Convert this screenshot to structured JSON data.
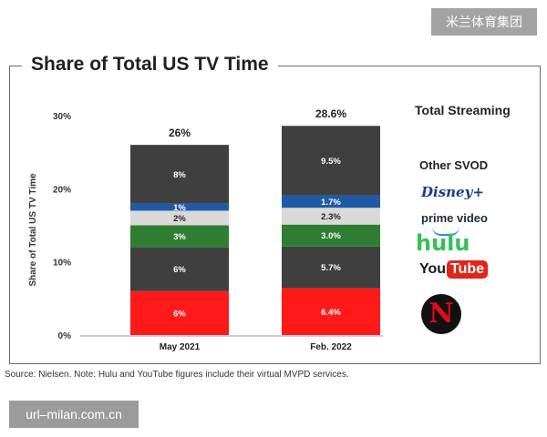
{
  "title": "Share of Total US TV Time",
  "watermark_top": "米兰体育集团",
  "watermark_bottom": "url–milan.com.cn",
  "source_note": "Source: Nielsen. Note: Hulu and YouTube figures include their virtual MVPD services.",
  "legend": {
    "total": "Total Streaming",
    "svod": "Other SVOD",
    "disney": "Disney+",
    "prime": "prime video",
    "hulu": "hulu",
    "youtube_you": "You",
    "youtube_tube": "Tube",
    "netflix": "N"
  },
  "colors": {
    "netflix": "#ff1a1a",
    "youtube": "#3f3f3f",
    "hulu": "#2e7d32",
    "prime": "#d9d9d9",
    "disney": "#1f5aa6",
    "other_svod": "#3f3f3f"
  },
  "chart_data": {
    "type": "bar",
    "stacked": true,
    "title": "Share of Total US TV Time",
    "ylabel": "Share of Total US TV Time",
    "xlabel": "",
    "ylim": [
      0,
      30
    ],
    "yticks": [
      "0%",
      "10%",
      "20%",
      "30%"
    ],
    "categories": [
      "May 2021",
      "Feb. 2022"
    ],
    "totals": [
      "26%",
      "28.6%"
    ],
    "series": [
      {
        "key": "netflix",
        "values": [
          6,
          6.4
        ],
        "labels": [
          "6%",
          "6.4%"
        ]
      },
      {
        "key": "youtube",
        "values": [
          6,
          5.7
        ],
        "labels": [
          "6%",
          "5.7%"
        ]
      },
      {
        "key": "hulu",
        "values": [
          3,
          3.0
        ],
        "labels": [
          "3%",
          "3.0%"
        ]
      },
      {
        "key": "prime",
        "values": [
          2,
          2.3
        ],
        "labels": [
          "2%",
          "2.3%"
        ]
      },
      {
        "key": "disney",
        "values": [
          1,
          1.7
        ],
        "labels": [
          "1%",
          "1.7%"
        ]
      },
      {
        "key": "other_svod",
        "values": [
          8,
          9.5
        ],
        "labels": [
          "8%",
          "9.5%"
        ]
      }
    ]
  }
}
